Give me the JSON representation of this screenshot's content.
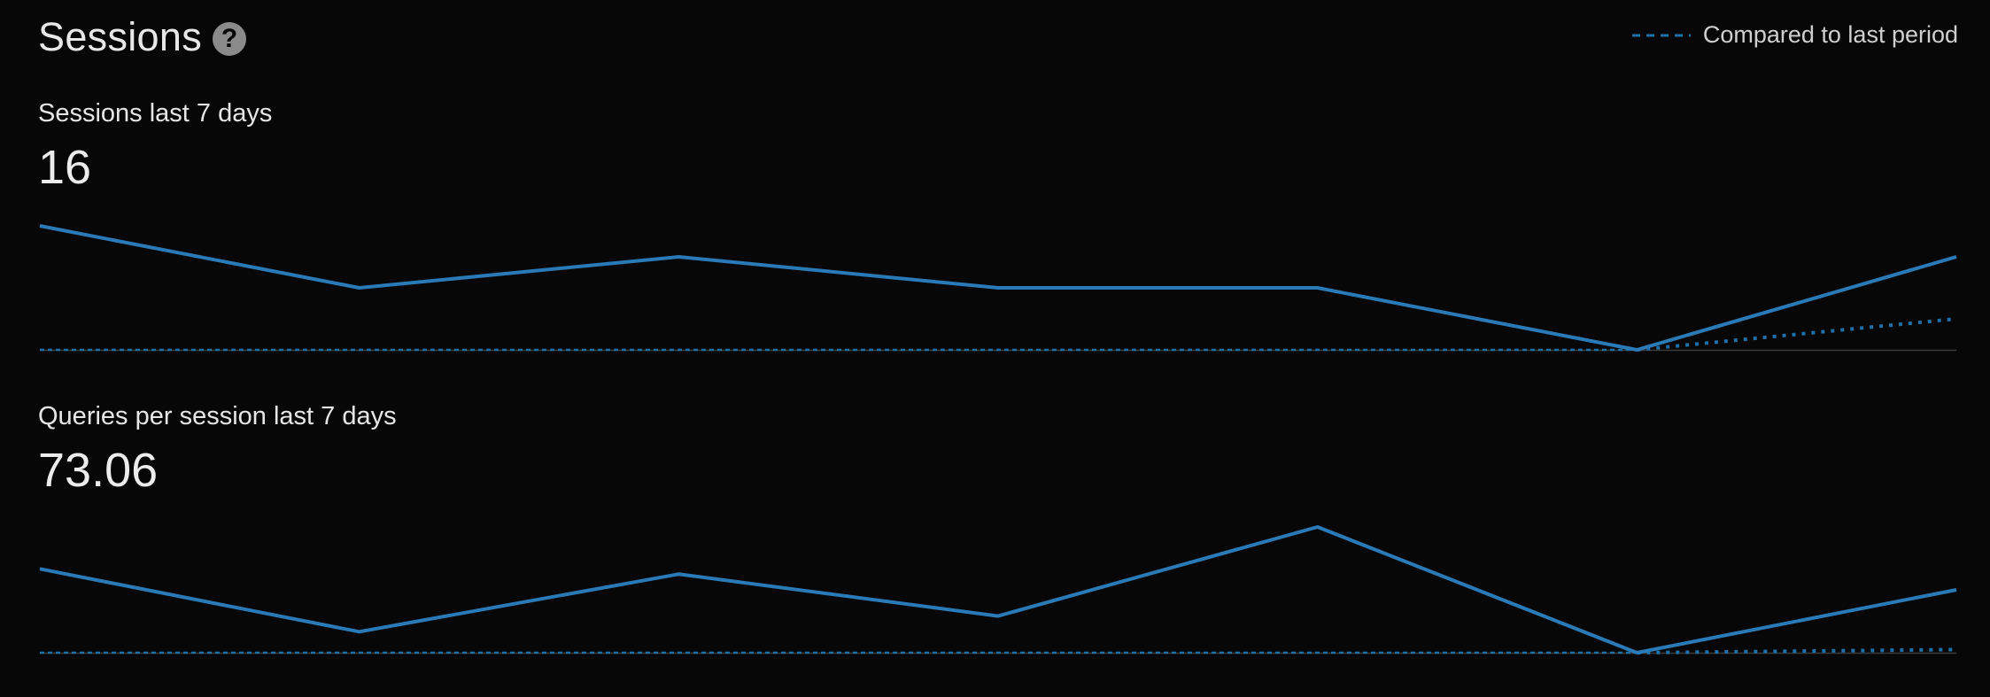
{
  "header": {
    "title": "Sessions",
    "help_icon": "question-circle-icon"
  },
  "legend": {
    "label": "Compared to last period",
    "style": "dashed",
    "color": "#1f6fa8"
  },
  "colors": {
    "current": "#2a7ab8",
    "previous": "#1f6fa8",
    "baseline": "#3a3a3a",
    "background": "#070708"
  },
  "metrics": [
    {
      "label": "Sessions last 7 days",
      "value": "16"
    },
    {
      "label": "Queries per session last 7 days",
      "value": "73.06"
    }
  ],
  "chart_data": [
    {
      "type": "line",
      "x": [
        1,
        2,
        3,
        4,
        5,
        6,
        7
      ],
      "ylim": [
        0,
        4
      ],
      "series": [
        {
          "values": [
            4,
            2,
            3,
            2,
            2,
            0,
            3
          ],
          "style": "solid"
        },
        {
          "values": [
            0,
            0,
            0,
            0,
            0,
            0,
            1
          ],
          "style": "dotted"
        }
      ]
    },
    {
      "type": "line",
      "x": [
        1,
        2,
        3,
        4,
        5,
        6,
        7
      ],
      "ylim": [
        0,
        120
      ],
      "series": [
        {
          "values": [
            80,
            20,
            75,
            35,
            120,
            0,
            60
          ],
          "style": "solid"
        },
        {
          "values": [
            0,
            0,
            0,
            0,
            0,
            0,
            3
          ],
          "style": "dotted"
        }
      ]
    }
  ]
}
